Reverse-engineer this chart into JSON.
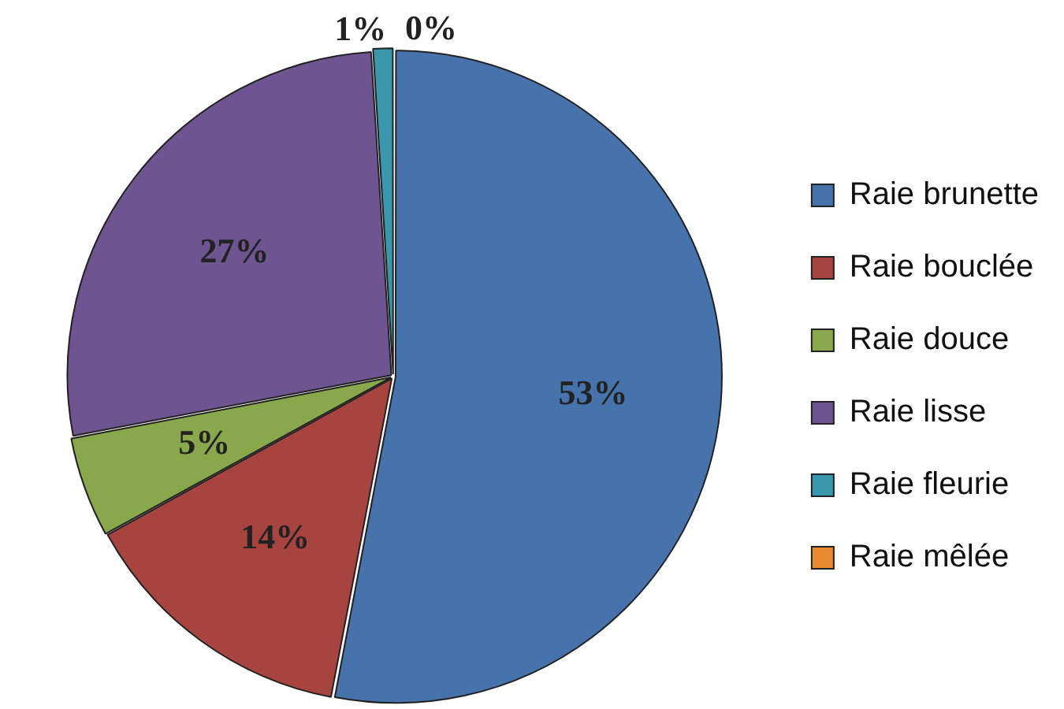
{
  "chart_data": {
    "type": "pie",
    "categories": [
      "Raie brunette",
      "Raie bouclée",
      "Raie douce",
      "Raie lisse",
      "Raie fleurie",
      "Raie mêlée"
    ],
    "values": [
      53,
      14,
      5,
      27,
      1,
      0
    ],
    "colors": [
      "#4673ab",
      "#a8443f",
      "#89a84b",
      "#6e5490",
      "#3a98ae",
      "#ea8a2f"
    ],
    "value_labels": [
      "53%",
      "14%",
      "5%",
      "27%",
      "1%",
      "0%"
    ],
    "legend": "right"
  }
}
